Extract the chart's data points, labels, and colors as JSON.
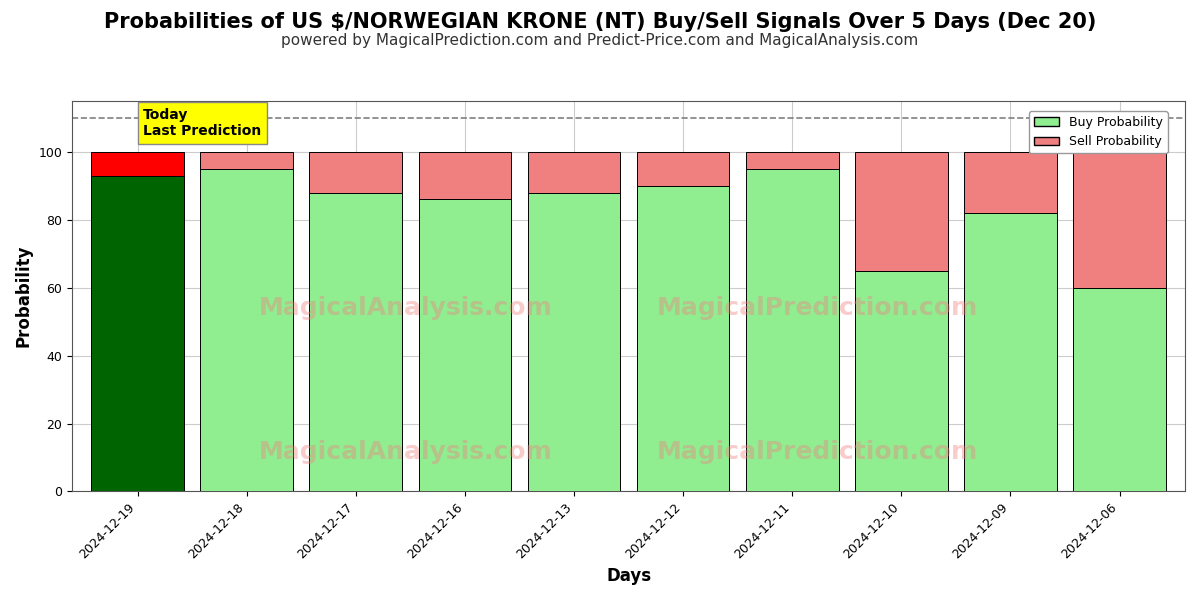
{
  "title": "Probabilities of US $/NORWEGIAN KRONE (NT) Buy/Sell Signals Over 5 Days (Dec 20)",
  "subtitle": "powered by MagicalPrediction.com and Predict-Price.com and MagicalAnalysis.com",
  "xlabel": "Days",
  "ylabel": "Probability",
  "dates": [
    "2024-12-19",
    "2024-12-18",
    "2024-12-17",
    "2024-12-16",
    "2024-12-13",
    "2024-12-12",
    "2024-12-11",
    "2024-12-10",
    "2024-12-09",
    "2024-12-06"
  ],
  "buy_probs": [
    93,
    95,
    88,
    86,
    88,
    90,
    95,
    65,
    82,
    60
  ],
  "sell_probs": [
    7,
    5,
    12,
    14,
    12,
    10,
    5,
    35,
    18,
    40
  ],
  "today_bar_buy_color": "#006400",
  "today_bar_sell_color": "#FF0000",
  "other_bar_buy_color": "#90EE90",
  "other_bar_sell_color": "#F08080",
  "bar_edge_color": "#000000",
  "ylim": [
    0,
    115
  ],
  "yticks": [
    0,
    20,
    40,
    60,
    80,
    100
  ],
  "dashed_line_y": 110,
  "dashed_line_color": "#808080",
  "today_label_text": "Today\nLast Prediction",
  "today_label_bg": "#FFFF00",
  "legend_buy_label": "Buy Probability",
  "legend_sell_label": "Sell Probability",
  "watermark1": "MagicalAnalysis.com",
  "watermark2": "MagicalPrediction.com",
  "background_color": "#FFFFFF",
  "plot_bg_color": "#FFFFFF",
  "grid_color": "#CCCCCC",
  "title_fontsize": 15,
  "subtitle_fontsize": 11,
  "axis_label_fontsize": 12,
  "tick_fontsize": 9,
  "bar_width": 0.85
}
